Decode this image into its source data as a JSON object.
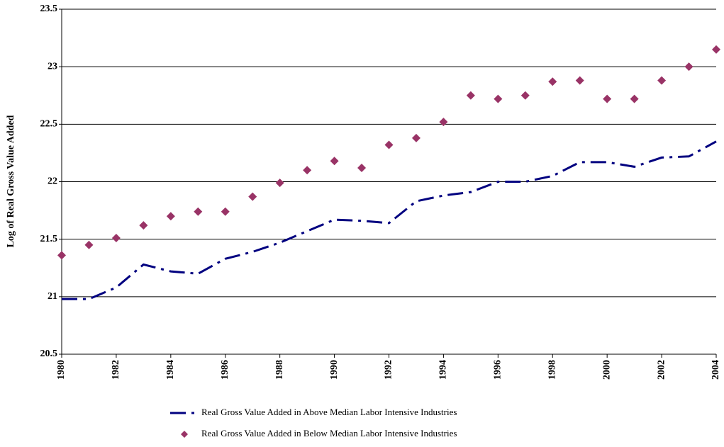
{
  "chart_data": {
    "type": "line",
    "y_label": "Log of Real Gross Value Added",
    "x": [
      1980,
      1981,
      1982,
      1983,
      1984,
      1985,
      1986,
      1987,
      1988,
      1989,
      1990,
      1991,
      1992,
      1993,
      1994,
      1995,
      1996,
      1997,
      1998,
      1999,
      2000,
      2001,
      2002,
      2003,
      2004
    ],
    "series": [
      {
        "name": "Real Gross Value Added in Above Median Labor Intensive Industries",
        "color": "#000080",
        "linestyle": "dashdot",
        "values": [
          20.98,
          20.98,
          21.08,
          21.28,
          21.22,
          21.2,
          21.33,
          21.39,
          21.47,
          21.57,
          21.67,
          21.66,
          21.64,
          21.83,
          21.88,
          21.91,
          22.0,
          22.0,
          22.05,
          22.17,
          22.17,
          22.13,
          22.21,
          22.22,
          22.35
        ]
      },
      {
        "name": "Real Gross Value Added in Below Median Labor Intensive Industries",
        "color": "#993366",
        "marker": "diamond",
        "values": [
          21.36,
          21.45,
          21.51,
          21.62,
          21.7,
          21.74,
          21.74,
          21.87,
          21.99,
          22.1,
          22.18,
          22.12,
          22.32,
          22.38,
          22.52,
          22.75,
          22.72,
          22.75,
          22.87,
          22.88,
          22.72,
          22.72,
          22.88,
          23.0,
          23.15
        ]
      }
    ],
    "xlim": [
      1980,
      2004
    ],
    "xticks": [
      1980,
      1982,
      1984,
      1986,
      1988,
      1990,
      1992,
      1994,
      1996,
      1998,
      2000,
      2002,
      2004
    ],
    "ylim": [
      20.5,
      23.5
    ],
    "yticks": [
      20.5,
      21,
      21.5,
      22,
      22.5,
      23,
      23.5
    ],
    "grid": true,
    "legend": "bottom"
  }
}
